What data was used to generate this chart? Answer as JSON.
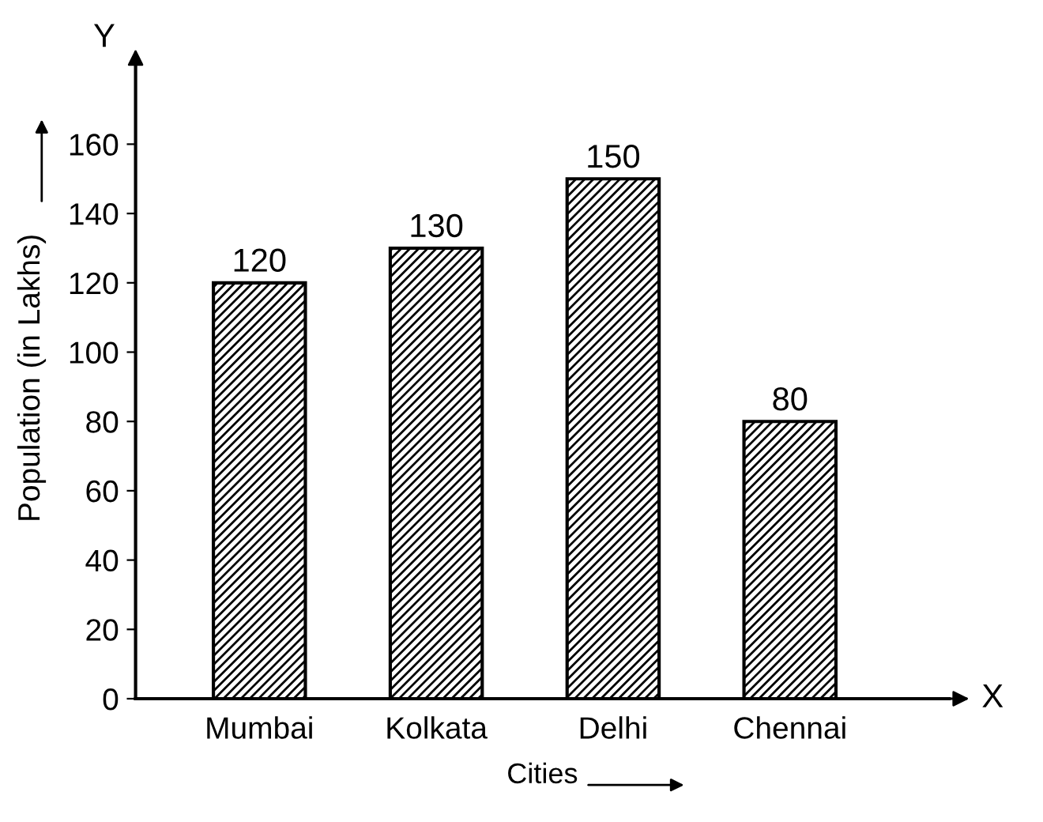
{
  "chart_data": {
    "type": "bar",
    "xlabel": "Cities",
    "ylabel": "Population (in Lakhs)",
    "categories": [
      "Mumbai",
      "Kolkata",
      "Delhi",
      "Chennai"
    ],
    "values": [
      120,
      130,
      150,
      80
    ],
    "color": "#000000",
    "data_labels": true,
    "ylim": [
      0,
      185
    ],
    "yticks": [
      0,
      20,
      40,
      60,
      80,
      100,
      120,
      140,
      160
    ],
    "grid": false,
    "annotations": [
      "Y",
      "X"
    ]
  }
}
